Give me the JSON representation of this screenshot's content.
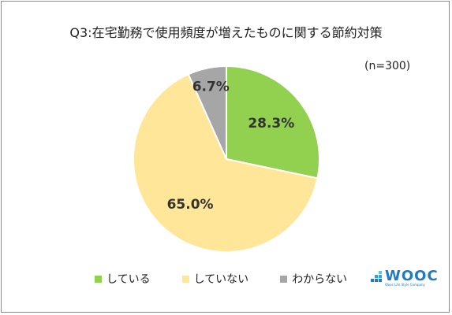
{
  "chart_data": {
    "type": "pie",
    "title": "Q3:在宅勤務で使用頻度が増えたものに関する節約対策",
    "note": "(n=300)",
    "slices": [
      {
        "label": "している",
        "value": 28.3,
        "display": "28.3%",
        "color": "#92d050"
      },
      {
        "label": "していない",
        "value": 65.0,
        "display": "65.0%",
        "color": "#ffe699"
      },
      {
        "label": "わからない",
        "value": 6.7,
        "display": "6.7%",
        "color": "#a6a6a6"
      }
    ],
    "legend_position": "bottom"
  },
  "logo": {
    "text": "WOOC",
    "subtext": "Wooc Life Style Company",
    "colors": [
      "#1f78c8",
      "#2aa6e0",
      "#5cc6f0"
    ]
  }
}
